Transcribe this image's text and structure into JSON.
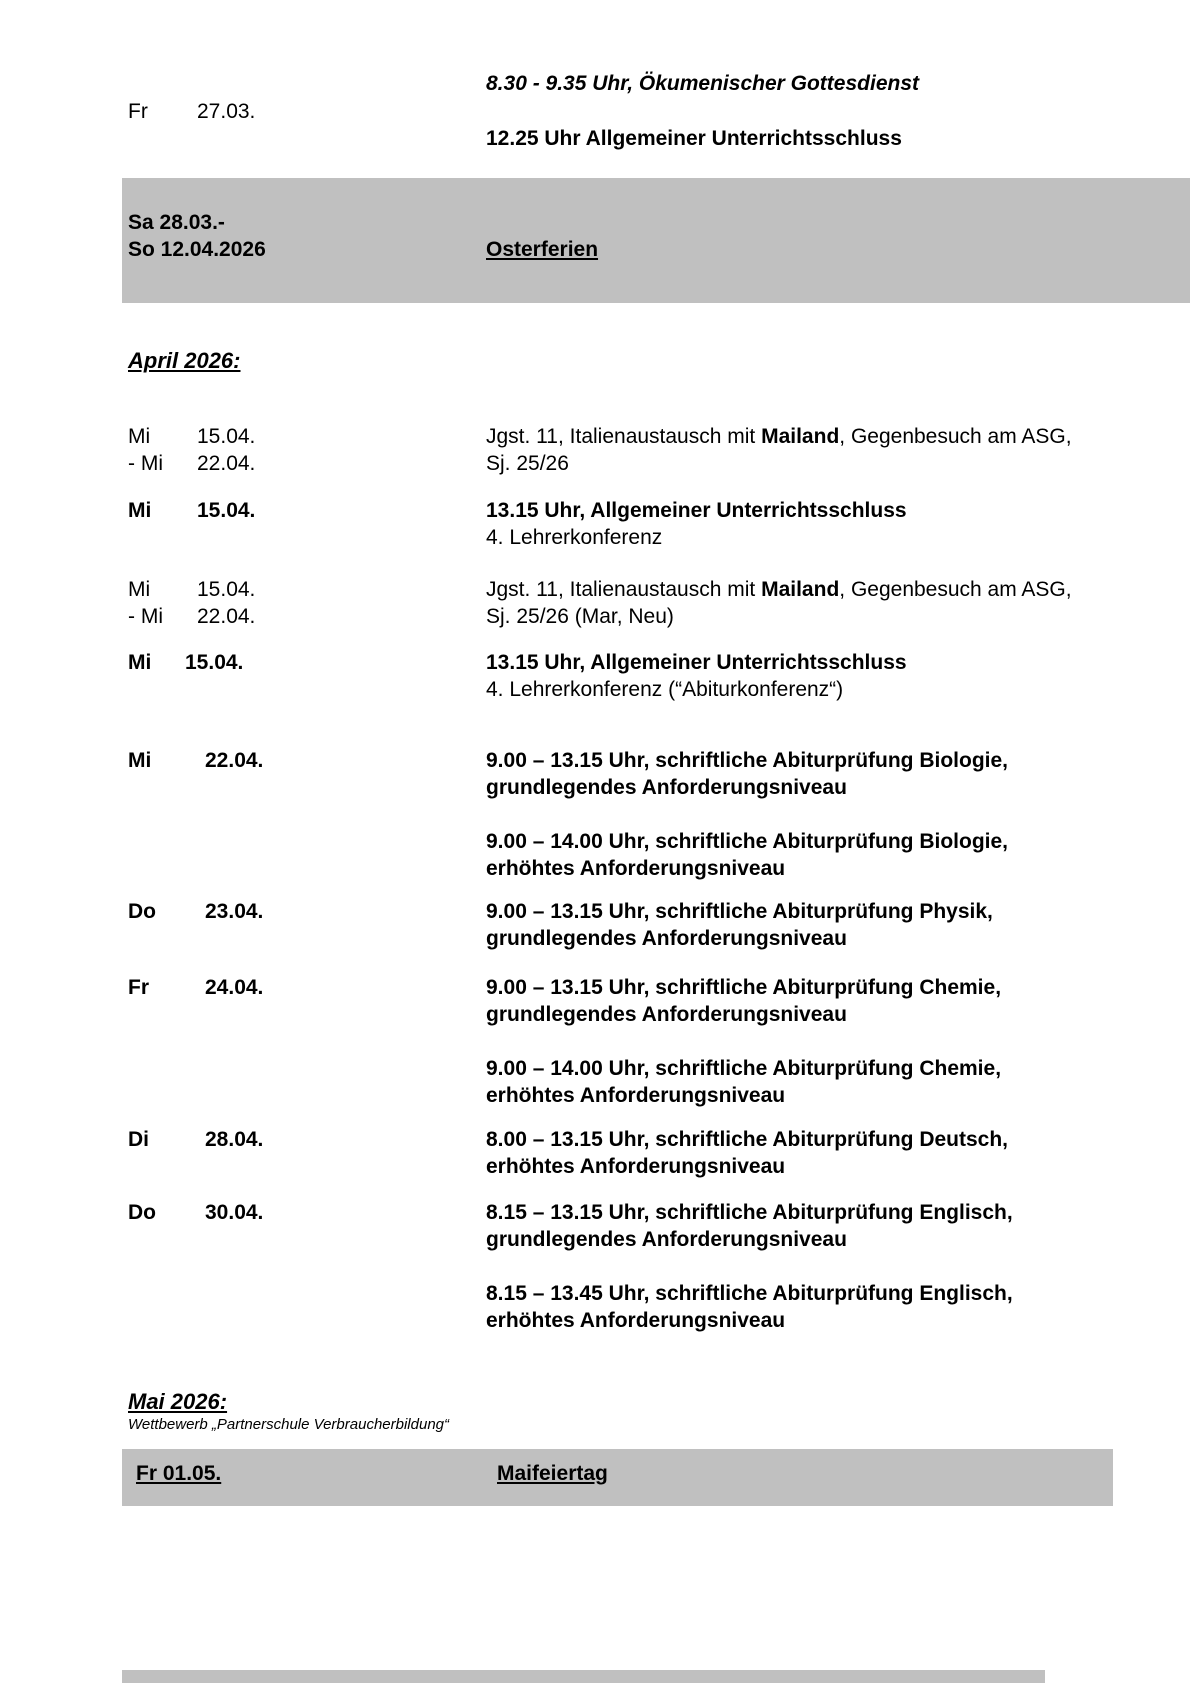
{
  "colors": {
    "band_gray": "#c0c0c0"
  },
  "march_event": {
    "day": "Fr",
    "date": "27.03.",
    "line1": "8.30 - 9.35 Uhr, Ökumenischer Gottesdienst",
    "line2": "12.25 Uhr Allgemeiner Unterrichtsschluss"
  },
  "oster_band": {
    "date_line1": "Sa 28.03.-",
    "date_line2": "So 12.04.2026",
    "label": "Osterferien"
  },
  "april": {
    "heading": "April 2026:",
    "rows": [
      {
        "day1": "Mi",
        "date1": "15.04.",
        "day2": "- Mi",
        "date2": "22.04.",
        "l1_pre": "Jgst. 11, Italienaustausch mit ",
        "l1_bold": "Mailand",
        "l1_post": ", Gegenbesuch am ASG,",
        "l2": "Sj. 25/26"
      },
      {
        "day": "Mi",
        "date": "15.04.",
        "bold1": "13.15 Uhr, Allgemeiner Unterrichtsschluss",
        "l2": "4. Lehrerkonferenz"
      },
      {
        "day1": "Mi",
        "date1": "15.04.",
        "day2": "- Mi",
        "date2": "22.04.",
        "l1_pre": "Jgst. 11, Italienaustausch mit ",
        "l1_bold": "Mailand",
        "l1_post": ", Gegenbesuch am ASG,",
        "l2": "Sj. 25/26 (Mar, Neu)"
      },
      {
        "day": "Mi",
        "date": "15.04.",
        "bold1": "13.15 Uhr, Allgemeiner Unterrichtsschluss",
        "l2": "4. Lehrerkonferenz (“Abiturkonferenz“)"
      },
      {
        "day": "Mi",
        "date": "22.04.",
        "b1a": "9.00 – 13.15 Uhr, schriftliche Abiturprüfung Biologie,",
        "b1b": "grundlegendes Anforderungsniveau",
        "b2a": "9.00 – 14.00 Uhr, schriftliche Abiturprüfung Biologie,",
        "b2b": "erhöhtes Anforderungsniveau"
      },
      {
        "day": "Do",
        "date": "23.04.",
        "b1a": "9.00 – 13.15 Uhr, schriftliche Abiturprüfung Physik,",
        "b1b": "grundlegendes Anforderungsniveau"
      },
      {
        "day": "Fr",
        "date": "24.04.",
        "b1a": "9.00 – 13.15 Uhr, schriftliche Abiturprüfung Chemie,",
        "b1b": "grundlegendes Anforderungsniveau",
        "b2a": "9.00 – 14.00 Uhr, schriftliche Abiturprüfung Chemie,",
        "b2b": "erhöhtes Anforderungsniveau"
      },
      {
        "day": "Di",
        "date": "28.04.",
        "b1a": "8.00 – 13.15 Uhr, schriftliche Abiturprüfung Deutsch,",
        "b1b": "erhöhtes Anforderungsniveau"
      },
      {
        "day": "Do",
        "date": "30.04.",
        "b1a": "8.15 – 13.15 Uhr, schriftliche Abiturprüfung Englisch,",
        "b1b": "grundlegendes Anforderungsniveau",
        "b2a": "8.15 – 13.45 Uhr, schriftliche Abiturprüfung Englisch,",
        "b2b": "erhöhtes Anforderungsniveau"
      }
    ]
  },
  "mai": {
    "heading": "Mai 2026:",
    "subline": "Wettbewerb „Partnerschule Verbraucherbildung“"
  },
  "mai_band": {
    "date": "Fr 01.05.",
    "label": "Maifeiertag"
  }
}
